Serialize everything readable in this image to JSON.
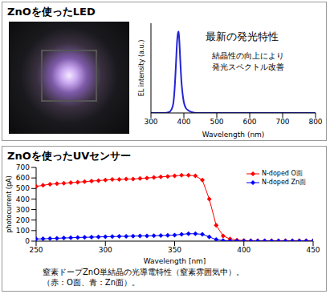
{
  "chart_data": [
    {
      "type": "line",
      "title": "ZnOを使ったLED",
      "xlabel": "Wavelength (nm)",
      "ylabel": "EL intensity (a.u.)",
      "annotations": [
        "最新の発光特性",
        "結晶性の向上により",
        "発光スペクトル改善"
      ],
      "x": [
        300,
        340,
        355,
        362,
        368,
        372,
        376,
        379,
        382,
        384,
        386,
        389,
        392,
        396,
        400,
        406,
        414,
        424,
        440,
        500,
        600,
        700,
        800
      ],
      "values": [
        0,
        0,
        0.01,
        0.04,
        0.12,
        0.3,
        0.6,
        0.85,
        0.98,
        1.0,
        0.9,
        0.65,
        0.42,
        0.24,
        0.13,
        0.06,
        0.03,
        0.01,
        0,
        0,
        0,
        0,
        0
      ],
      "color": "#2424d8",
      "xlim": [
        300,
        800
      ],
      "xticks": [
        300,
        400,
        500,
        600,
        700,
        800
      ],
      "ylim": [
        0,
        1.1
      ],
      "tick_labels": "x",
      "grid": false
    },
    {
      "type": "line",
      "title": "ZnOを使ったUVセンサー",
      "xlabel": "Wavelength [nm]",
      "ylabel": "photocurrent (pA)",
      "annotations": [
        "窒素ドープZnO単結晶の光導電特性（窒素雰囲気中）。",
        "（赤：O面、青：Zn面）。"
      ],
      "x": [
        250,
        255,
        260,
        265,
        270,
        275,
        280,
        285,
        290,
        295,
        300,
        305,
        310,
        315,
        320,
        325,
        330,
        335,
        340,
        345,
        350,
        355,
        360,
        365,
        370,
        375,
        380,
        385,
        390,
        395,
        400,
        405,
        410,
        415,
        420,
        425,
        430,
        435,
        440,
        445,
        450
      ],
      "series": [
        {
          "name": "N-doped O面",
          "color": "#ff0000",
          "marker": "diamond",
          "values": [
            520,
            530,
            540,
            545,
            550,
            555,
            560,
            565,
            570,
            575,
            580,
            585,
            585,
            590,
            590,
            595,
            600,
            605,
            610,
            615,
            620,
            625,
            625,
            620,
            580,
            400,
            150,
            50,
            20,
            10,
            5,
            3,
            3,
            3,
            3,
            3,
            3,
            3,
            3,
            3,
            3
          ]
        },
        {
          "name": "N-doped Zn面",
          "color": "#0000ff",
          "marker": "diamond",
          "values": [
            20,
            22,
            25,
            27,
            30,
            32,
            35,
            36,
            38,
            40,
            42,
            43,
            45,
            46,
            48,
            49,
            50,
            51,
            53,
            55,
            58,
            65,
            70,
            70,
            65,
            40,
            15,
            5,
            2,
            1,
            1,
            1,
            1,
            1,
            1,
            1,
            1,
            1,
            1,
            1,
            1
          ]
        }
      ],
      "xlim": [
        250,
        450
      ],
      "xticks": [
        250,
        300,
        350,
        400,
        450
      ],
      "ylim": [
        0,
        700
      ],
      "yticks": [
        0,
        100,
        200,
        300,
        400,
        500,
        600,
        700
      ],
      "legend": "upper right",
      "grid": false
    }
  ]
}
